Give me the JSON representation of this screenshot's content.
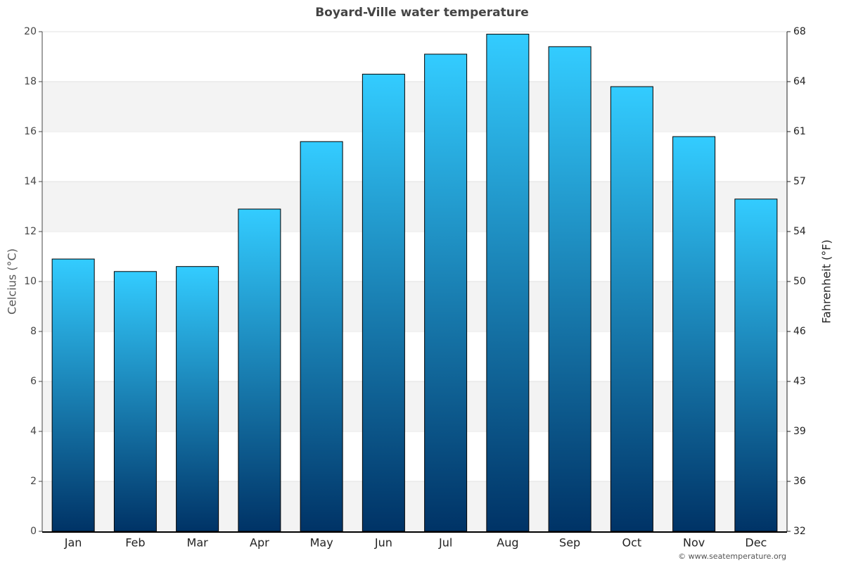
{
  "chart_data": {
    "type": "bar",
    "title": "Boyard-Ville water temperature",
    "categories": [
      "Jan",
      "Feb",
      "Mar",
      "Apr",
      "May",
      "Jun",
      "Jul",
      "Aug",
      "Sep",
      "Oct",
      "Nov",
      "Dec"
    ],
    "values": [
      10.9,
      10.4,
      10.6,
      12.9,
      15.6,
      18.3,
      19.1,
      19.9,
      19.4,
      17.8,
      15.8,
      13.3
    ],
    "gradient": [
      "#33ccff",
      "#003366"
    ],
    "ylabel": "Celcius (°C)",
    "y2label": "Fahrenheit (°F)",
    "ylim": [
      0,
      20
    ],
    "yticks": [
      0,
      2,
      4,
      6,
      8,
      10,
      12,
      14,
      16,
      18,
      20
    ],
    "y2lim": [
      32,
      68
    ],
    "y2ticks": [
      32,
      {
        "value": 35.6,
        "label": "36"
      },
      {
        "value": 39.2,
        "label": "39"
      },
      {
        "value": 42.8,
        "label": "43"
      },
      {
        "value": 46.4,
        "label": "46"
      },
      50,
      {
        "value": 53.6,
        "label": "54"
      },
      {
        "value": 57.2,
        "label": "57"
      },
      {
        "value": 60.8,
        "label": "61"
      },
      {
        "value": 64.4,
        "label": "64"
      },
      68
    ],
    "grid": true,
    "credit": "© www.seatemperature.org"
  }
}
